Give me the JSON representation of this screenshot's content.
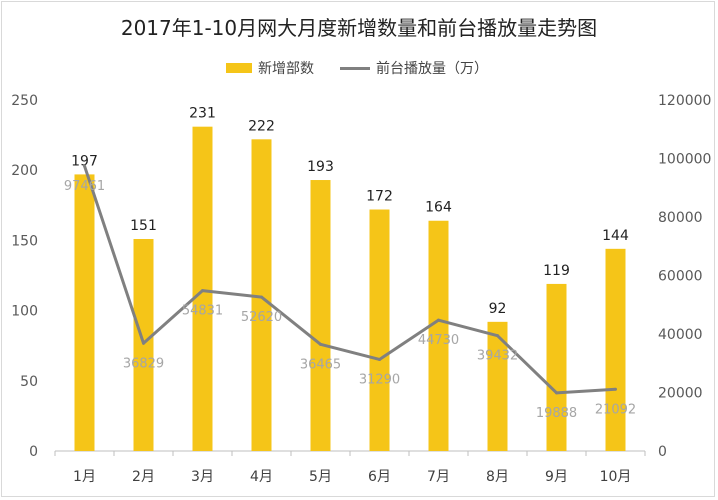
{
  "chart_data": {
    "type": "bar",
    "title": "2017年1-10月网大月度新增数量和前台播放量走势图",
    "categories": [
      "1月",
      "2月",
      "3月",
      "4月",
      "5月",
      "6月",
      "7月",
      "8月",
      "9月",
      "10月"
    ],
    "series": [
      {
        "name": "新增部数",
        "type": "bar",
        "axis": "left",
        "color": "#f5c518",
        "values": [
          197,
          151,
          231,
          222,
          193,
          172,
          164,
          92,
          119,
          144
        ]
      },
      {
        "name": "前台播放量（万）",
        "type": "line",
        "axis": "right",
        "color": "#808080",
        "values": [
          97461,
          36829,
          54831,
          52620,
          36465,
          31290,
          44730,
          39432,
          19888,
          21092
        ]
      }
    ],
    "y_left": {
      "min": 0,
      "max": 250,
      "ticks": [
        0,
        50,
        100,
        150,
        200,
        250
      ]
    },
    "y_right": {
      "min": 0,
      "max": 120000,
      "ticks": [
        0,
        20000,
        40000,
        60000,
        80000,
        100000,
        120000
      ]
    },
    "legend_position": "top-center",
    "grid": false
  }
}
